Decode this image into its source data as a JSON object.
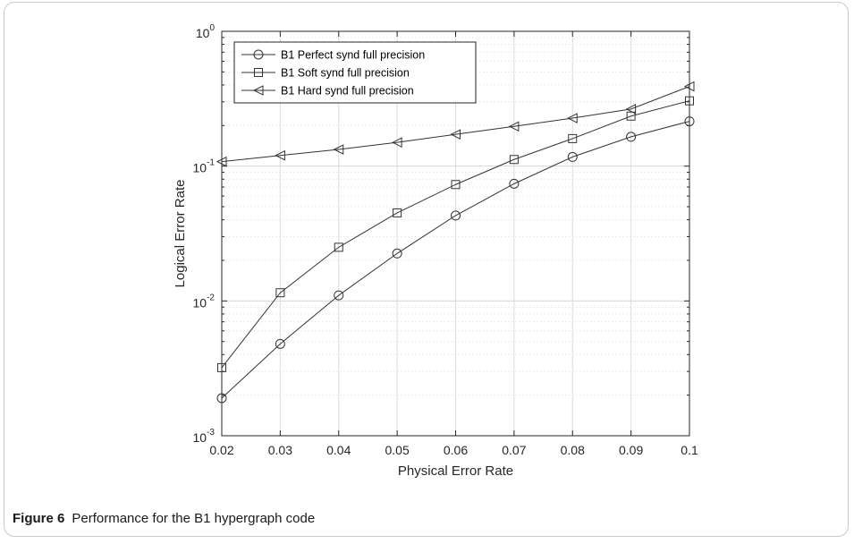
{
  "caption": {
    "label": "Figure 6",
    "text": "Performance for the B1 hypergraph code"
  },
  "chart_data": {
    "type": "line",
    "xlabel": "Physical Error Rate",
    "ylabel": "Logical Error Rate",
    "yscale": "log",
    "xlim": [
      0.02,
      0.1
    ],
    "ylim": [
      0.001,
      1
    ],
    "grid": true,
    "legend_position": "top-left",
    "x_ticks": [
      "0.02",
      "0.03",
      "0.04",
      "0.05",
      "0.06",
      "0.07",
      "0.08",
      "0.09",
      "0.1"
    ],
    "y_ticks": [
      {
        "base": "10",
        "exp": "0"
      },
      {
        "base": "10",
        "exp": "-1"
      },
      {
        "base": "10",
        "exp": "-2"
      },
      {
        "base": "10",
        "exp": "-3"
      }
    ],
    "x": [
      0.02,
      0.03,
      0.04,
      0.05,
      0.06,
      0.07,
      0.08,
      0.09,
      0.1
    ],
    "series": [
      {
        "name": "B1 Perfect synd full precision",
        "marker": "circle",
        "values": [
          0.0019,
          0.0048,
          0.011,
          0.0225,
          0.043,
          0.074,
          0.117,
          0.165,
          0.215
        ]
      },
      {
        "name": "B1 Soft synd full precision",
        "marker": "square",
        "values": [
          0.0032,
          0.0115,
          0.025,
          0.045,
          0.073,
          0.112,
          0.16,
          0.235,
          0.305
        ]
      },
      {
        "name": "B1 Hard synd full precision",
        "marker": "triangle-left",
        "values": [
          0.108,
          0.12,
          0.133,
          0.15,
          0.172,
          0.197,
          0.227,
          0.265,
          0.39
        ]
      }
    ]
  }
}
